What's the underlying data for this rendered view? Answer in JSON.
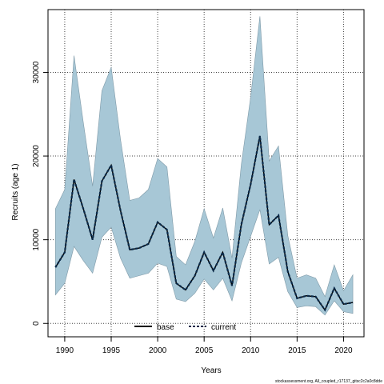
{
  "chart_data": {
    "type": "area",
    "xlabel": "Years",
    "ylabel": "Recruits (age 1)",
    "xlim": [
      1988.2,
      2022.2
    ],
    "ylim": [
      -1600,
      37500
    ],
    "x_ticks": [
      1990,
      1995,
      2000,
      2005,
      2010,
      2015,
      2020
    ],
    "y_ticks": [
      0,
      10000,
      20000,
      30000
    ],
    "grid": true,
    "legend_placement": "bottom-center",
    "x": [
      1989,
      1990,
      1991,
      1992,
      1993,
      1994,
      1995,
      1996,
      1997,
      1998,
      1999,
      2000,
      2001,
      2002,
      2003,
      2004,
      2005,
      2006,
      2007,
      2008,
      2009,
      2010,
      2011,
      2012,
      2013,
      2014,
      2015,
      2016,
      2017,
      2018,
      2019,
      2020,
      2021
    ],
    "band": {
      "upper": [
        13700,
        16000,
        32000,
        24000,
        16400,
        27800,
        30600,
        22000,
        14700,
        15000,
        16000,
        19700,
        18700,
        8000,
        7000,
        9800,
        13700,
        10200,
        13800,
        7800,
        19000,
        27000,
        36700,
        19400,
        21200,
        10500,
        5400,
        5800,
        5400,
        3200,
        7000,
        3900,
        5800
      ],
      "lower": [
        3400,
        4800,
        9200,
        7500,
        6000,
        10300,
        11500,
        7800,
        5400,
        5700,
        6000,
        7200,
        6800,
        2900,
        2600,
        3600,
        5300,
        4000,
        5400,
        2700,
        7200,
        10400,
        13600,
        7100,
        7900,
        3800,
        1900,
        2100,
        2000,
        1000,
        2700,
        1400,
        1200
      ]
    },
    "series": [
      {
        "name": "base",
        "values": [
          6700,
          8500,
          17200,
          13700,
          10000,
          17000,
          18900,
          13500,
          8800,
          9000,
          9500,
          12100,
          11200,
          4800,
          4000,
          5700,
          8500,
          6300,
          8500,
          4500,
          11800,
          16600,
          22400,
          11800,
          12900,
          6200,
          3000,
          3300,
          3200,
          1600,
          4200,
          2300,
          2500
        ]
      },
      {
        "name": "current",
        "values": [
          6700,
          8500,
          17200,
          13700,
          10000,
          17000,
          18900,
          13500,
          8800,
          9000,
          9500,
          12100,
          11200,
          4800,
          4000,
          5700,
          8500,
          6300,
          8500,
          4500,
          11800,
          16600,
          22400,
          11800,
          12900,
          6200,
          3000,
          3300,
          3200,
          1600,
          4200,
          2300,
          2500
        ]
      }
    ],
    "colors": {
      "band_fill": "#a7c7d6",
      "band_edge": "#7f9aa8",
      "current_line": "#0a2a4a",
      "base_line": "#000000"
    }
  },
  "credit": "stockassessment.org, All_coupled_r17137_gitsc2c2a0c8dde"
}
